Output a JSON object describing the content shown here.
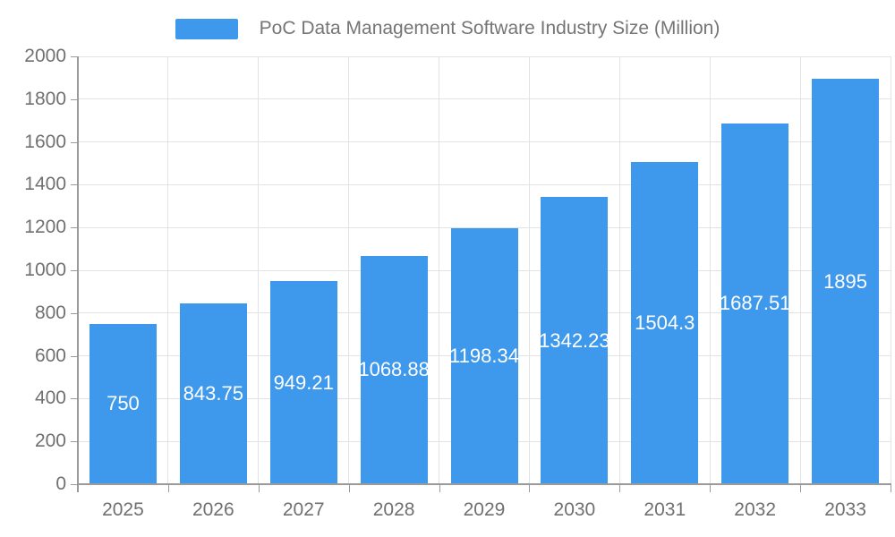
{
  "legend": {
    "label": "PoC Data Management Software Industry Size (Million)",
    "swatch_color": "#3E99ED"
  },
  "chart_data": {
    "type": "bar",
    "title": "PoC Data Management Software Industry Size (Million)",
    "categories": [
      "2025",
      "2026",
      "2027",
      "2028",
      "2029",
      "2030",
      "2031",
      "2032",
      "2033"
    ],
    "values": [
      750,
      843.75,
      949.21,
      1068.88,
      1198.34,
      1342.23,
      1504.3,
      1687.51,
      1895
    ],
    "labels": [
      "750",
      "843.75",
      "949.21",
      "1068.88",
      "1198.34",
      "1342.23",
      "1504.3",
      "1687.51",
      "1895"
    ],
    "yticks": [
      0,
      200,
      400,
      600,
      800,
      1000,
      1200,
      1400,
      1600,
      1800,
      2000
    ],
    "ylim": [
      0,
      2000
    ],
    "xlabel": "",
    "ylabel": "",
    "grid": true,
    "legend_position": "top",
    "label_position": "inside-middle",
    "colors": {
      "bar": "#3E99ED",
      "bar_label": "#ffffff",
      "grid_line": "#e3e3e3",
      "axis_line": "#9a9a9a",
      "tick_text": "#707070",
      "legend_text": "#757575",
      "background": "#ffffff"
    }
  }
}
